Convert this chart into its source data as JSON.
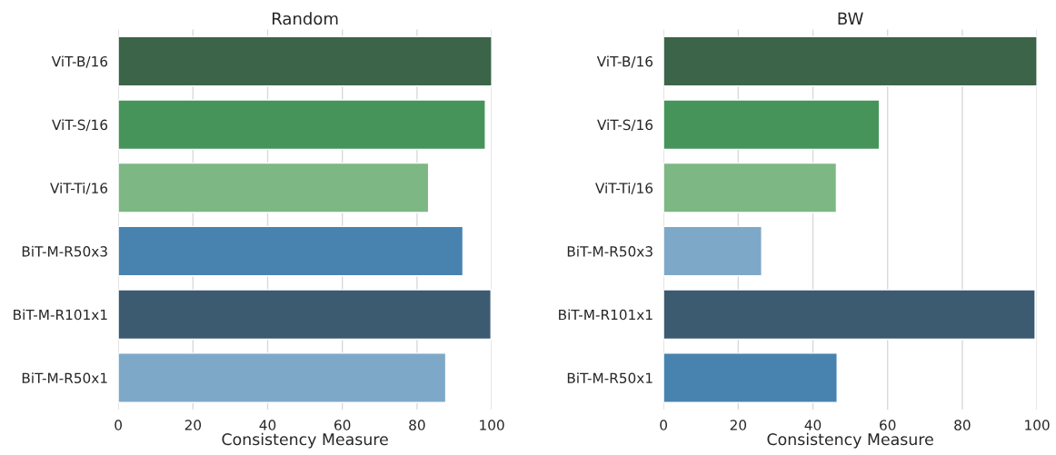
{
  "chart_data": [
    {
      "type": "bar",
      "orientation": "horizontal",
      "title": "Random",
      "xlabel": "Consistency Measure",
      "categories": [
        "ViT-B/16",
        "ViT-S/16",
        "ViT-Ti/16",
        "BiT-M-R50x3",
        "BiT-M-R101x1",
        "BiT-M-R50x1"
      ],
      "values": [
        100,
        98.3,
        83.1,
        92.3,
        99.8,
        87.7
      ],
      "colors": [
        "#3b6449",
        "#46945a",
        "#7db784",
        "#4883b0",
        "#3c5a70",
        "#7ea8c8"
      ],
      "xlim": [
        0,
        100
      ],
      "xticks": [
        0,
        20,
        40,
        60,
        80,
        100
      ],
      "grid": "x"
    },
    {
      "type": "bar",
      "orientation": "horizontal",
      "title": "BW",
      "xlabel": "Consistency Measure",
      "categories": [
        "ViT-B/16",
        "ViT-S/16",
        "ViT-Ti/16",
        "BiT-M-R50x3",
        "BiT-M-R101x1",
        "BiT-M-R50x1"
      ],
      "values": [
        100,
        57.8,
        46.3,
        26.3,
        99.5,
        46.5
      ],
      "colors": [
        "#3b6449",
        "#46945a",
        "#7db784",
        "#7ea8c8",
        "#3c5a70",
        "#4883b0"
      ],
      "xlim": [
        0,
        100
      ],
      "xticks": [
        0,
        20,
        40,
        60,
        80,
        100
      ],
      "grid": "x"
    }
  ]
}
